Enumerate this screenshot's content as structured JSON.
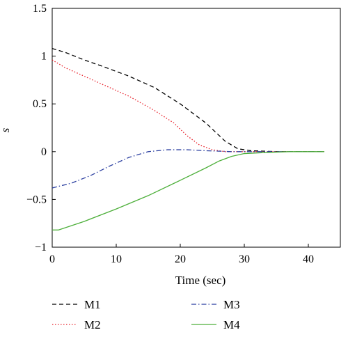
{
  "chart_data": {
    "type": "line",
    "title": "",
    "xlabel": "Time (sec)",
    "ylabel": "s",
    "xlim": [
      0,
      45
    ],
    "ylim": [
      -1,
      1.5
    ],
    "xticks": [
      0,
      10,
      20,
      30,
      40
    ],
    "yticks": [
      -1,
      -0.5,
      0,
      0.5,
      1,
      1.5
    ],
    "xtick_labels": [
      "0",
      "10",
      "20",
      "30",
      "40"
    ],
    "ytick_labels": [
      "−1",
      "−0.5",
      "0",
      "0.5",
      "1",
      "1.5"
    ],
    "grid": false,
    "legend_position": "bottom",
    "series": [
      {
        "name": "M1",
        "color": "#000000",
        "style": "dashed",
        "x": [
          0,
          2,
          5,
          8,
          12,
          16,
          20,
          24,
          27,
          29,
          31,
          35,
          40,
          42.5
        ],
        "y": [
          1.08,
          1.04,
          0.96,
          0.89,
          0.79,
          0.67,
          0.5,
          0.3,
          0.11,
          0.03,
          0.01,
          0.0,
          0.0,
          0.0
        ]
      },
      {
        "name": "M2",
        "color": "#e8202a",
        "style": "dotted",
        "x": [
          0,
          2,
          5,
          8,
          12,
          16,
          19,
          21,
          23,
          25,
          27,
          30,
          35,
          42.5
        ],
        "y": [
          0.96,
          0.88,
          0.79,
          0.7,
          0.58,
          0.43,
          0.3,
          0.17,
          0.07,
          0.02,
          0.0,
          0.0,
          0.0,
          0.0
        ]
      },
      {
        "name": "M3",
        "color": "#2b3fa0",
        "style": "dashdot",
        "x": [
          0,
          3,
          6,
          9,
          12,
          15,
          18,
          21,
          24,
          28,
          32,
          36,
          42.5
        ],
        "y": [
          -0.38,
          -0.33,
          -0.25,
          -0.15,
          -0.06,
          0.0,
          0.02,
          0.02,
          0.01,
          0.0,
          0.0,
          0.0,
          0.0
        ]
      },
      {
        "name": "M4",
        "color": "#4daf3a",
        "style": "solid",
        "x": [
          0,
          1,
          5,
          10,
          15,
          20,
          24,
          26,
          28,
          30,
          33,
          37,
          42.5
        ],
        "y": [
          -0.82,
          -0.82,
          -0.73,
          -0.6,
          -0.46,
          -0.3,
          -0.17,
          -0.1,
          -0.05,
          -0.02,
          -0.01,
          0.0,
          0.0
        ]
      }
    ]
  }
}
